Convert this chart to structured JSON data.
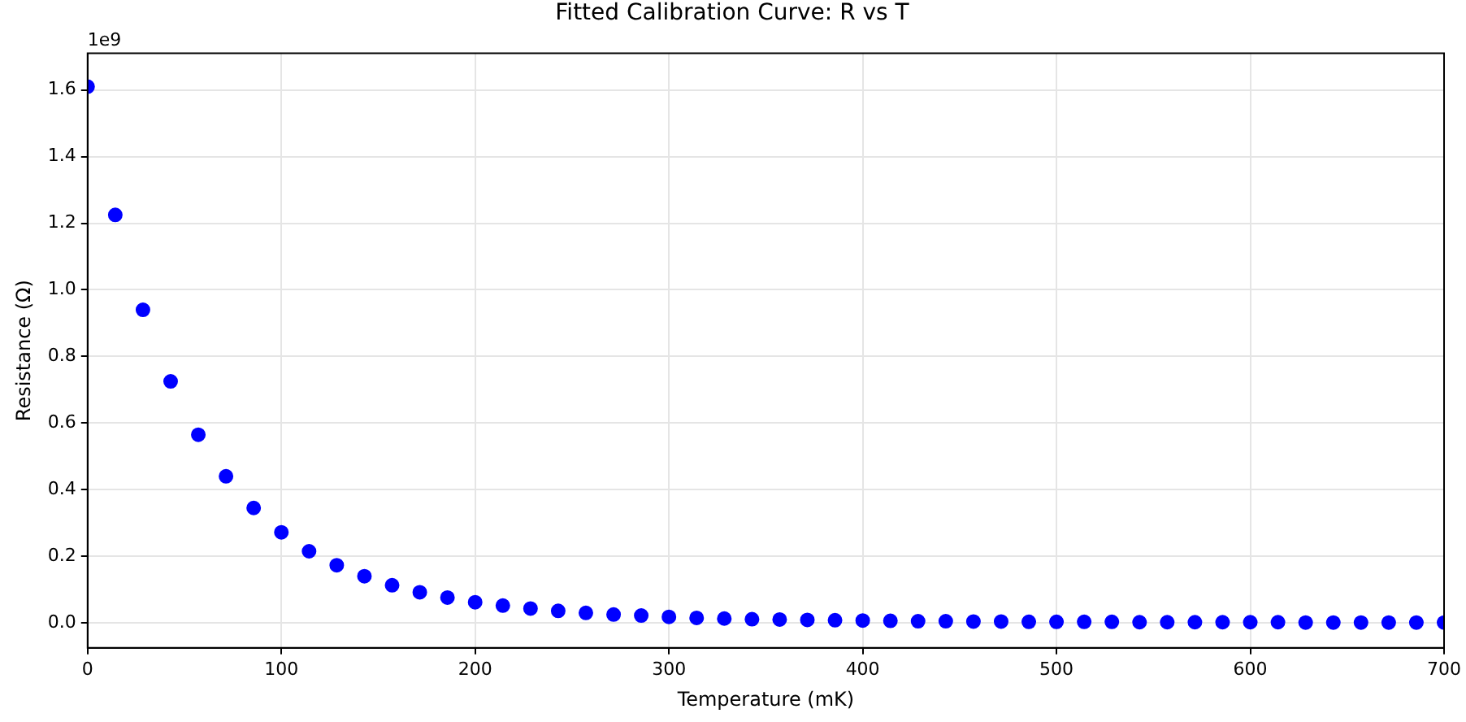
{
  "chart_data": {
    "type": "scatter",
    "title": "Fitted Calibration Curve: R vs T",
    "xlabel": "Temperature (mK)",
    "ylabel": "Resistance (Ω)",
    "annotations": [
      "1e9"
    ],
    "x": [
      0,
      14.29,
      28.57,
      42.86,
      57.14,
      71.43,
      85.71,
      100,
      114.29,
      128.57,
      142.86,
      157.14,
      171.43,
      185.71,
      200,
      214.29,
      228.57,
      242.86,
      257.14,
      271.43,
      285.71,
      300,
      314.29,
      328.57,
      342.86,
      357.14,
      371.43,
      385.71,
      400,
      414.29,
      428.57,
      442.86,
      457.14,
      471.43,
      485.71,
      500,
      514.29,
      528.57,
      542.86,
      557.14,
      571.43,
      585.71,
      600,
      614.29,
      628.57,
      642.86,
      657.14,
      671.43,
      685.71,
      700
    ],
    "series": [
      {
        "color": "#0000ff",
        "values": [
          1.61,
          1.225,
          0.94,
          0.725,
          0.565,
          0.44,
          0.345,
          0.272,
          0.215,
          0.173,
          0.14,
          0.113,
          0.092,
          0.076,
          0.062,
          0.052,
          0.043,
          0.036,
          0.03,
          0.025,
          0.022,
          0.018,
          0.015,
          0.013,
          0.011,
          0.01,
          0.009,
          0.008,
          0.007,
          0.006,
          0.005,
          0.005,
          0.004,
          0.004,
          0.003,
          0.003,
          0.003,
          0.003,
          0.002,
          0.002,
          0.002,
          0.002,
          0.002,
          0.002,
          0.001,
          0.001,
          0.001,
          0.001,
          0.001,
          0.001
        ]
      }
    ],
    "xlim": [
      0,
      700
    ],
    "xticks": [
      0,
      100,
      200,
      300,
      400,
      500,
      600,
      700
    ],
    "ylim": [
      -0.075,
      1.71
    ],
    "yticks": [
      {
        "value": 0,
        "label": "0.0"
      },
      0.2,
      0.4,
      0.6,
      0.8,
      {
        "value": 1,
        "label": "1.0"
      },
      1.2,
      1.4,
      1.6
    ],
    "grid": true,
    "legend": false,
    "marker": "circle"
  }
}
